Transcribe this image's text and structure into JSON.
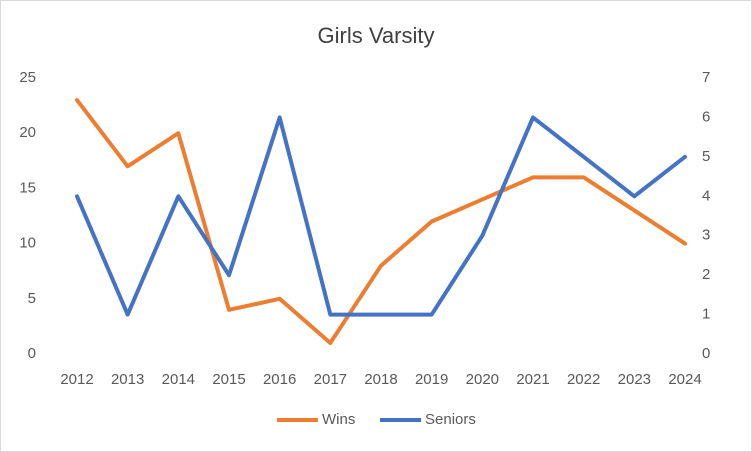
{
  "chart_data": {
    "type": "line",
    "title": "Girls Varsity",
    "categories": [
      "2012",
      "2013",
      "2014",
      "2015",
      "2016",
      "2017",
      "2018",
      "2019",
      "2020",
      "2021",
      "2022",
      "2023",
      "2024"
    ],
    "series": [
      {
        "name": "Wins",
        "color": "#ed7d31",
        "values": [
          23,
          17,
          20,
          4,
          5,
          1,
          8,
          12,
          14,
          16,
          16,
          13,
          10
        ]
      },
      {
        "name": "Seniors",
        "color": "#4472c4",
        "axis": "y2",
        "values": [
          4,
          1,
          4,
          2,
          6,
          1,
          1,
          1,
          3,
          6,
          5,
          4,
          5
        ]
      }
    ],
    "ylim": [
      0,
      25
    ],
    "yticks": [
      0,
      5,
      10,
      15,
      20,
      25
    ],
    "y2lim": [
      0,
      7
    ],
    "y2ticks": [
      0,
      1,
      2,
      3,
      4,
      5,
      6,
      7
    ],
    "grid": false,
    "legend": "bottom"
  }
}
